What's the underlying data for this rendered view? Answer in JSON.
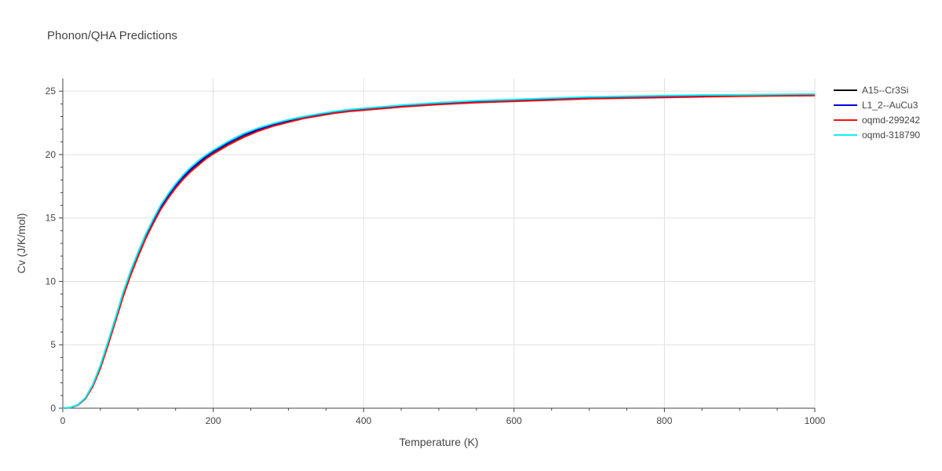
{
  "chart_data": {
    "type": "line",
    "title": "Phonon/QHA Predictions",
    "xlabel": "Temperature (K)",
    "ylabel": "Cv (J/K/mol)",
    "xlim": [
      0,
      1000
    ],
    "ylim": [
      0,
      26
    ],
    "x_ticks": [
      0,
      200,
      400,
      600,
      800,
      1000
    ],
    "y_ticks": [
      0,
      5,
      10,
      15,
      20,
      25
    ],
    "x_tick_labels": [
      "0",
      "200",
      "400",
      "600",
      "800",
      "1000"
    ],
    "y_tick_labels": [
      "0",
      "5",
      "10",
      "15",
      "20",
      "25"
    ],
    "grid": true,
    "legend_position": "top-right",
    "x": [
      0,
      10,
      20,
      30,
      40,
      50,
      60,
      70,
      80,
      90,
      100,
      110,
      120,
      130,
      140,
      150,
      160,
      170,
      180,
      190,
      200,
      220,
      240,
      260,
      280,
      300,
      320,
      340,
      360,
      380,
      400,
      450,
      500,
      550,
      600,
      650,
      700,
      750,
      800,
      850,
      900,
      950,
      1000
    ],
    "series": [
      {
        "name": "A15--Cr3Si",
        "color": "#000000",
        "values": [
          0,
          0.05,
          0.25,
          0.75,
          1.75,
          3.2,
          5.0,
          6.9,
          8.8,
          10.5,
          12.0,
          13.4,
          14.6,
          15.7,
          16.6,
          17.4,
          18.1,
          18.7,
          19.2,
          19.7,
          20.1,
          20.8,
          21.4,
          21.9,
          22.3,
          22.6,
          22.9,
          23.1,
          23.3,
          23.45,
          23.55,
          23.8,
          24.0,
          24.15,
          24.25,
          24.35,
          24.45,
          24.5,
          24.55,
          24.6,
          24.65,
          24.68,
          24.7
        ]
      },
      {
        "name": "L1_2--AuCu3",
        "color": "#0000dd",
        "values": [
          0,
          0.05,
          0.26,
          0.78,
          1.8,
          3.3,
          5.1,
          7.0,
          8.95,
          10.65,
          12.15,
          13.55,
          14.75,
          15.85,
          16.75,
          17.55,
          18.25,
          18.85,
          19.35,
          19.85,
          20.25,
          20.95,
          21.55,
          22.0,
          22.35,
          22.7,
          22.95,
          23.15,
          23.35,
          23.5,
          23.6,
          23.85,
          24.05,
          24.2,
          24.3,
          24.4,
          24.5,
          24.55,
          24.6,
          24.65,
          24.7,
          24.72,
          24.75
        ]
      },
      {
        "name": "oqmd-299242",
        "color": "#ee1111",
        "values": [
          0,
          0.05,
          0.24,
          0.74,
          1.72,
          3.15,
          4.95,
          6.85,
          8.75,
          10.45,
          11.95,
          13.35,
          14.55,
          15.65,
          16.55,
          17.35,
          18.05,
          18.65,
          19.15,
          19.65,
          20.05,
          20.75,
          21.35,
          21.85,
          22.25,
          22.55,
          22.85,
          23.05,
          23.25,
          23.4,
          23.5,
          23.75,
          23.95,
          24.1,
          24.2,
          24.3,
          24.4,
          24.45,
          24.5,
          24.55,
          24.6,
          24.63,
          24.65
        ]
      },
      {
        "name": "oqmd-318790",
        "color": "#11eeee",
        "values": [
          0,
          0.06,
          0.28,
          0.82,
          1.88,
          3.4,
          5.25,
          7.15,
          9.1,
          10.8,
          12.3,
          13.7,
          14.9,
          16.0,
          16.9,
          17.7,
          18.4,
          19.0,
          19.5,
          19.95,
          20.35,
          21.05,
          21.65,
          22.1,
          22.45,
          22.75,
          23.0,
          23.2,
          23.4,
          23.55,
          23.65,
          23.9,
          24.1,
          24.25,
          24.35,
          24.45,
          24.55,
          24.6,
          24.65,
          24.7,
          24.72,
          24.75,
          24.78
        ]
      }
    ]
  }
}
